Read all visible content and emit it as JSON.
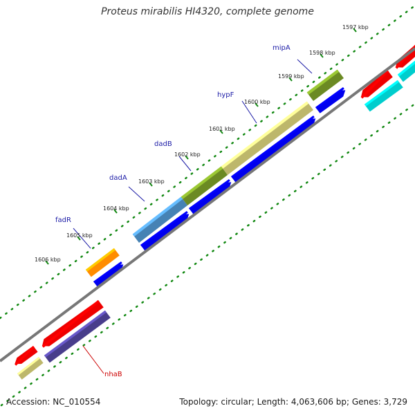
{
  "title": "Proteus mirabilis HI4320, complete genome",
  "footer": {
    "accession": "Accession: NC_010554",
    "summary": "Topology: circular; Length: 4,063,606 bp; Genes: 3,729"
  },
  "colors": {
    "backbone": "#777777",
    "tick": "#118811",
    "gene_label": "#1a1aa6",
    "rna_label": "#cc0000"
  },
  "ticks": [
    {
      "label": "1597 kbp"
    },
    {
      "label": "1598 kbp"
    },
    {
      "label": "1599 kbp"
    },
    {
      "label": "1600 kbp"
    },
    {
      "label": "1601 kbp"
    },
    {
      "label": "1602 kbp"
    },
    {
      "label": "1603 kbp"
    },
    {
      "label": "1604 kbp"
    },
    {
      "label": "1605 kbp"
    },
    {
      "label": "1606 kbp"
    }
  ],
  "gene_labels": [
    {
      "name": "mipA",
      "color": "gene"
    },
    {
      "name": "hypF",
      "color": "gene"
    },
    {
      "name": "dadB",
      "color": "gene"
    },
    {
      "name": "dadA",
      "color": "gene"
    },
    {
      "name": "fadR",
      "color": "gene"
    },
    {
      "name": "nhaB",
      "color": "rna"
    }
  ],
  "features": [
    {
      "name": "mipA-cog",
      "color": "#6b8a23"
    },
    {
      "name": "hypF-cog",
      "color": "#bdb76b"
    },
    {
      "name": "dadB-cog",
      "color": "#6b8a23"
    },
    {
      "name": "dadA-cog",
      "color": "#4682b4"
    },
    {
      "name": "fadR-cog",
      "color": "#ff8c00"
    },
    {
      "name": "mipA-cds",
      "color": "#0000ee"
    },
    {
      "name": "hypF-cds",
      "color": "#0000ee"
    },
    {
      "name": "dadB-cds",
      "color": "#0000ee"
    },
    {
      "name": "dadA-cds",
      "color": "#0000ee"
    },
    {
      "name": "fadR-cds",
      "color": "#0000ee"
    },
    {
      "name": "nhaB-cds",
      "color": "#ee0000"
    },
    {
      "name": "nhaB-cog",
      "color": "#483d8b"
    },
    {
      "name": "left-cds",
      "color": "#ee0000"
    },
    {
      "name": "left-cog",
      "color": "#bdb76b"
    },
    {
      "name": "right-cds-1",
      "color": "#ee0000"
    },
    {
      "name": "right-cds-2",
      "color": "#ee0000"
    },
    {
      "name": "right-cog-1",
      "color": "#00cdcd"
    },
    {
      "name": "right-cog-2",
      "color": "#00cdcd"
    }
  ]
}
